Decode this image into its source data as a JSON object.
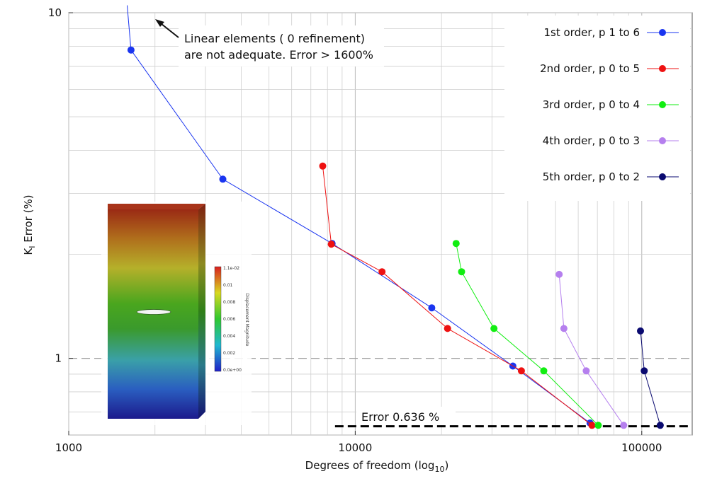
{
  "chart_data": {
    "type": "line",
    "title": "",
    "xlabel": "Degrees of freedom (log",
    "xlabel_sub": "10",
    "xlabel_close": ")",
    "ylabel_main": "K",
    "ylabel_sub": "I",
    "ylabel_rest": " Error (%)",
    "xscale": "log",
    "yscale": "log",
    "xlim": [
      1000,
      150000
    ],
    "ylim": [
      0.6,
      10
    ],
    "grid": true,
    "x_tick_labels": [
      {
        "value": 1000,
        "label": "1000"
      },
      {
        "value": 10000,
        "label": "10000"
      },
      {
        "value": 100000,
        "label": "100000"
      }
    ],
    "y_tick_labels": [
      {
        "value": 1,
        "label": "1"
      },
      {
        "value": 10,
        "label": "10"
      }
    ],
    "legend_position": "top-right",
    "series": [
      {
        "name": "1st order, p 1 to 6",
        "color": "#1a35f0",
        "x": [
          1600,
          1650,
          3450,
          8300,
          18500,
          35500,
          66000
        ],
        "y": [
          10.5,
          7.8,
          3.3,
          2.15,
          1.4,
          0.95,
          0.65
        ]
      },
      {
        "name": "2nd order, p 0 to 5",
        "color": "#ee1111",
        "x": [
          7700,
          8250,
          12400,
          21000,
          38000,
          67000
        ],
        "y": [
          3.6,
          2.14,
          1.78,
          1.22,
          0.92,
          0.64
        ]
      },
      {
        "name": "3rd order, p 0 to 4",
        "color": "#11ee11",
        "x": [
          22500,
          23500,
          30500,
          45500,
          70500
        ],
        "y": [
          2.15,
          1.78,
          1.22,
          0.92,
          0.64
        ]
      },
      {
        "name": "4th order, p 0 to 3",
        "color": "#b57fee",
        "x": [
          51500,
          53500,
          64000,
          86500
        ],
        "y": [
          1.75,
          1.22,
          0.92,
          0.64
        ]
      },
      {
        "name": "5th order, p 0 to 2",
        "color": "#0a0a70",
        "x": [
          99000,
          102000,
          116000
        ],
        "y": [
          1.2,
          0.92,
          0.64
        ]
      }
    ],
    "reference_line": {
      "y": 0.636,
      "x_from": 8500,
      "x_to": 150000,
      "label": "Error 0.636 %"
    },
    "annotations": [
      {
        "line1": "Linear elements ( 0 refinement)",
        "line2": "are not adequate. Error > 1600%"
      }
    ]
  },
  "inset": {
    "colorbar_title": "Displacement Magnitude",
    "colorbar_ticks": [
      "1.1e-02",
      "0.01",
      "0.008",
      "0.006",
      "0.004",
      "0.002",
      "0.0e+00"
    ]
  }
}
